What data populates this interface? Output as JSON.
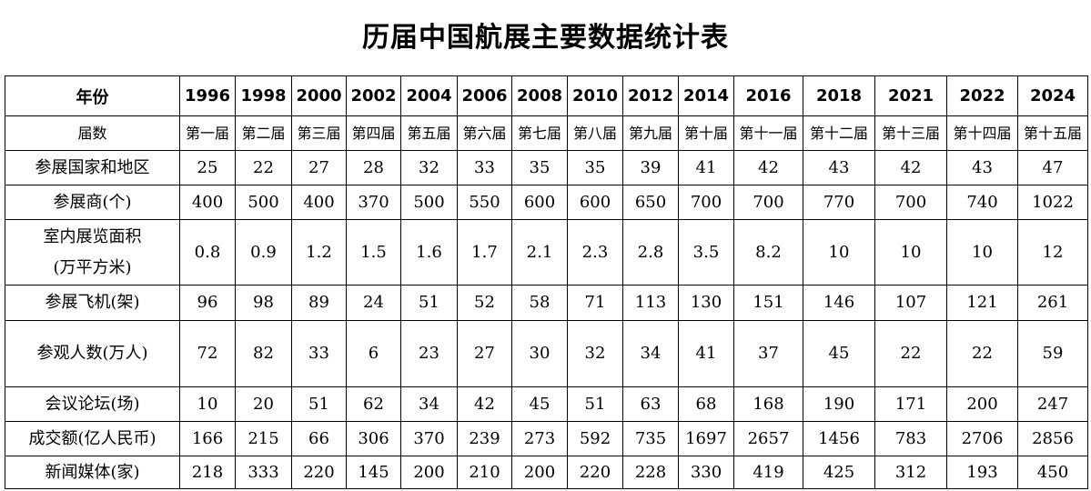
{
  "title": "历届中国航展主要数据统计表",
  "table": {
    "header": [
      "年份",
      "1996",
      "1998",
      "2000",
      "2002",
      "2004",
      "2006",
      "2008",
      "2010",
      "2012",
      "2014",
      "2016",
      "2018",
      "2021",
      "2022",
      "2024"
    ],
    "rows": [
      [
        "届数",
        "第一届",
        "第二届",
        "第三届",
        "第四届",
        "第五届",
        "第六届",
        "第七届",
        "第八届",
        "第九届",
        "第十届",
        "第十一届",
        "第十二届",
        "第十三届",
        "第十四届",
        "第十五届"
      ],
      [
        "参展国家和地区",
        "25",
        "22",
        "27",
        "28",
        "32",
        "33",
        "35",
        "35",
        "39",
        "41",
        "42",
        "43",
        "42",
        "43",
        "47"
      ],
      [
        "参展商(个)",
        "400",
        "500",
        "400",
        "370",
        "500",
        "550",
        "600",
        "600",
        "650",
        "700",
        "700",
        "770",
        "700",
        "740",
        "1022"
      ],
      [
        "室内展览面积\n(万平方米)",
        "0.8",
        "0.9",
        "1.2",
        "1.5",
        "1.6",
        "1.7",
        "2.1",
        "2.3",
        "2.8",
        "3.5",
        "8.2",
        "10",
        "10",
        "10",
        "12"
      ],
      [
        "参展飞机(架)",
        "96",
        "98",
        "89",
        "24",
        "51",
        "52",
        "58",
        "71",
        "113",
        "130",
        "151",
        "146",
        "107",
        "121",
        "261"
      ],
      [
        "参观人数(万人)",
        "72",
        "82",
        "33",
        "6",
        "23",
        "27",
        "30",
        "32",
        "34",
        "41",
        "37",
        "45",
        "22",
        "22",
        "59"
      ],
      [
        "会议论坛(场)",
        "10",
        "20",
        "51",
        "62",
        "34",
        "42",
        "45",
        "51",
        "63",
        "68",
        "168",
        "190",
        "171",
        "200",
        "247"
      ],
      [
        "成交额(亿人民币)",
        "166",
        "215",
        "66",
        "306",
        "370",
        "239",
        "273",
        "592",
        "735",
        "1697",
        "2657",
        "1456",
        "783",
        "2706",
        "2856"
      ],
      [
        "新闻媒体(家)",
        "218",
        "333",
        "220",
        "145",
        "200",
        "210",
        "200",
        "220",
        "228",
        "330",
        "419",
        "425",
        "312",
        "193",
        "450"
      ]
    ]
  }
}
